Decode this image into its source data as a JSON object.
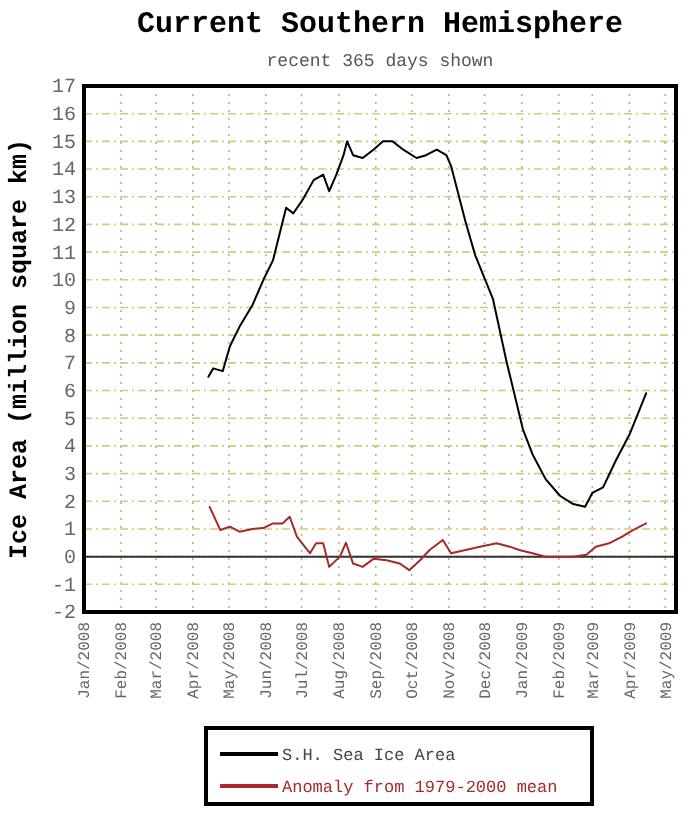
{
  "chart_data": {
    "type": "line",
    "title": "Current Southern Hemisphere",
    "subtitle": "recent 365 days shown",
    "ylabel": "Ice Area (million square km)",
    "xlim": [
      "2008-01-01",
      "2009-05-10"
    ],
    "ylim": [
      -2,
      17
    ],
    "yticks": [
      -2,
      -1,
      0,
      1,
      2,
      3,
      4,
      5,
      6,
      7,
      8,
      9,
      10,
      11,
      12,
      13,
      14,
      15,
      16,
      17
    ],
    "xticks": [
      {
        "value": "2008-01-01",
        "label": "Jan/2008"
      },
      {
        "value": "2008-02-01",
        "label": "Feb/2008"
      },
      {
        "value": "2008-03-01",
        "label": "Mar/2008"
      },
      {
        "value": "2008-04-01",
        "label": "Apr/2008"
      },
      {
        "value": "2008-05-01",
        "label": "May/2008"
      },
      {
        "value": "2008-06-01",
        "label": "Jun/2008"
      },
      {
        "value": "2008-07-01",
        "label": "Jul/2008"
      },
      {
        "value": "2008-08-01",
        "label": "Aug/2008"
      },
      {
        "value": "2008-09-01",
        "label": "Sep/2008"
      },
      {
        "value": "2008-10-01",
        "label": "Oct/2008"
      },
      {
        "value": "2008-11-01",
        "label": "Nov/2008"
      },
      {
        "value": "2008-12-01",
        "label": "Dec/2008"
      },
      {
        "value": "2009-01-01",
        "label": "Jan/2009"
      },
      {
        "value": "2009-02-01",
        "label": "Feb/2009"
      },
      {
        "value": "2009-03-01",
        "label": "Mar/2009"
      },
      {
        "value": "2009-04-01",
        "label": "Apr/2009"
      },
      {
        "value": "2009-05-01",
        "label": "May/2009"
      }
    ],
    "grid": true,
    "legend": "bottom",
    "ref_lines": [
      {
        "axis": "y",
        "value": 0,
        "color": "#333333"
      }
    ],
    "series": [
      {
        "name": "S.H. Sea Ice Area",
        "color": "#000000",
        "x": [
          "2008-04-14",
          "2008-04-18",
          "2008-04-26",
          "2008-05-02",
          "2008-05-10",
          "2008-05-21",
          "2008-05-30",
          "2008-06-07",
          "2008-06-18",
          "2008-06-24",
          "2008-07-02",
          "2008-07-11",
          "2008-07-19",
          "2008-07-24",
          "2008-07-30",
          "2008-08-05",
          "2008-08-08",
          "2008-08-13",
          "2008-08-21",
          "2008-08-30",
          "2008-09-07",
          "2008-09-15",
          "2008-09-24",
          "2008-10-05",
          "2008-10-13",
          "2008-10-22",
          "2008-10-30",
          "2008-11-03",
          "2008-11-09",
          "2008-11-15",
          "2008-11-23",
          "2008-12-08",
          "2008-12-19",
          "2009-01-02",
          "2009-01-10",
          "2009-01-21",
          "2009-02-02",
          "2009-02-13",
          "2009-02-23",
          "2009-03-01",
          "2009-03-10",
          "2009-03-21",
          "2009-04-01",
          "2009-04-15"
        ],
        "values": [
          6.5,
          6.8,
          6.7,
          7.6,
          8.3,
          9.1,
          10.0,
          10.7,
          12.6,
          12.4,
          12.9,
          13.6,
          13.8,
          13.2,
          13.8,
          14.5,
          15.0,
          14.5,
          14.4,
          14.7,
          15.0,
          15.0,
          14.7,
          14.4,
          14.5,
          14.7,
          14.5,
          14.1,
          13.1,
          12.1,
          10.9,
          9.3,
          7.1,
          4.6,
          3.7,
          2.8,
          2.2,
          1.9,
          1.8,
          2.3,
          2.5,
          3.5,
          4.4,
          5.9
        ]
      },
      {
        "name": "Anomaly from 1979-2000 mean",
        "color": "#a52a2a",
        "x": [
          "2008-04-15",
          "2008-04-24",
          "2008-05-02",
          "2008-05-10",
          "2008-05-21",
          "2008-05-30",
          "2008-06-07",
          "2008-06-15",
          "2008-06-21",
          "2008-06-27",
          "2008-07-08",
          "2008-07-13",
          "2008-07-19",
          "2008-07-24",
          "2008-08-02",
          "2008-08-07",
          "2008-08-13",
          "2008-08-21",
          "2008-08-30",
          "2008-09-10",
          "2008-09-21",
          "2008-09-29",
          "2008-10-08",
          "2008-10-16",
          "2008-10-27",
          "2008-11-03",
          "2008-11-15",
          "2008-11-27",
          "2008-12-11",
          "2008-12-22",
          "2008-12-30",
          "2009-01-10",
          "2009-01-21",
          "2009-02-02",
          "2009-02-13",
          "2009-02-24",
          "2009-03-04",
          "2009-03-15",
          "2009-03-26",
          "2009-04-04",
          "2009-04-15"
        ],
        "values": [
          1.8,
          0.96,
          1.08,
          0.9,
          1.0,
          1.03,
          1.2,
          1.2,
          1.44,
          0.72,
          0.12,
          0.48,
          0.48,
          -0.37,
          0.0,
          0.5,
          -0.25,
          -0.37,
          -0.08,
          -0.13,
          -0.25,
          -0.49,
          -0.13,
          0.24,
          0.6,
          0.12,
          0.24,
          0.36,
          0.48,
          0.36,
          0.24,
          0.12,
          0.0,
          0.0,
          0.0,
          0.07,
          0.36,
          0.48,
          0.72,
          0.96,
          1.2
        ]
      }
    ]
  }
}
